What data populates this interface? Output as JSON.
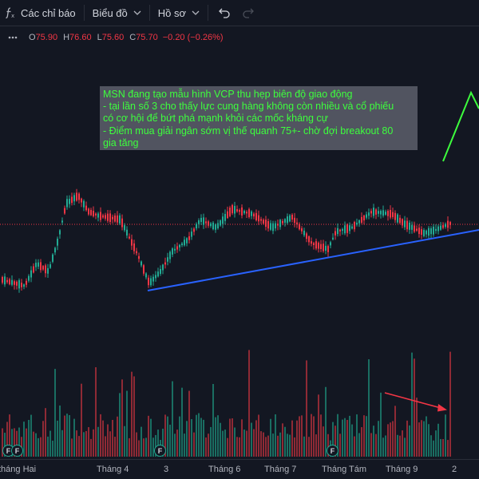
{
  "toolbar": {
    "indicators_label": "Các chỉ báo",
    "chart_label": "Biểu đồ",
    "profile_label": "Hồ sơ"
  },
  "ohlc": {
    "open_label": "O",
    "open": "75.90",
    "high_label": "H",
    "high": "76.60",
    "low_label": "L",
    "low": "75.60",
    "close_label": "C",
    "close": "75.70",
    "change": "−0.20 (−0.26%)"
  },
  "note": {
    "line1": "MSN đang tạo mẫu hình VCP thu hẹp biên độ giao động",
    "line2": "- tại lần số 3 cho thấy lực cung hàng không còn nhiều và cổ phiếu",
    "line3": "có cơ hội để bứt phá mạnh khỏi các mốc kháng cự",
    "line4": "- Điểm mua giải ngân sớm vị thế quanh 75+- chờ đợi breakout 80",
    "line5": "gia tăng"
  },
  "event_marks": {
    "label": "F"
  },
  "axis": {
    "labels": [
      "tháng Hai",
      "Tháng 4",
      "3",
      "Tháng 6",
      "Tháng 7",
      "Tháng Tám",
      "Tháng 9",
      "2"
    ]
  },
  "colors": {
    "background": "#131722",
    "up": "#22ab94",
    "down": "#f23645",
    "trendline": "#2962ff",
    "annotation_line": "#3dff3d",
    "arrow": "#f23645",
    "price_line": "#f23645"
  }
}
